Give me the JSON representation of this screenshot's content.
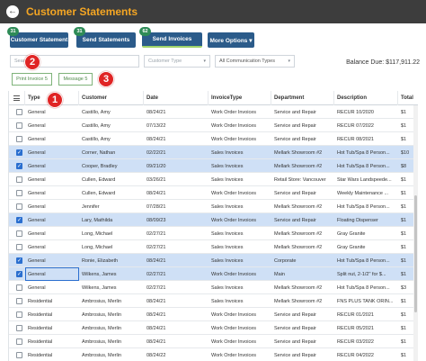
{
  "app": {
    "title": "Customer Statements",
    "back_icon": "arrow-left-circle-icon"
  },
  "toolbar": {
    "customer_statement": {
      "label": "Customer Statement",
      "badge": "31"
    },
    "send_statements": {
      "label": "Send Statements",
      "badge": "31"
    },
    "send_invoices": {
      "label": "Send Invoices",
      "badge": "62"
    },
    "more_options": {
      "label": "More Options ▾"
    }
  },
  "filters": {
    "search_placeholder": "Search",
    "customer_type_placeholder": "Customer Type",
    "communication_types": "All Communication Types"
  },
  "balance_due": "Balance Due: $117,911.22",
  "actions": {
    "print_invoice": "Print Invoice 5",
    "message": "Message 5"
  },
  "annotations": [
    "1",
    "2",
    "3"
  ],
  "table": {
    "columns": [
      "Type",
      "Customer",
      "Date",
      "InvoiceType",
      "Department",
      "Description",
      "Total"
    ],
    "rows": [
      {
        "selected": false,
        "type": "General",
        "customer": "Castillo, Amy",
        "date": "08/24/21",
        "invoice_type": "Work Order Invoices",
        "department": "Service and Repair",
        "description": "RECUR 10/2020",
        "total": "$1"
      },
      {
        "selected": false,
        "type": "General",
        "customer": "Castillo, Amy",
        "date": "07/13/22",
        "invoice_type": "Work Order Invoices",
        "department": "Service and Repair",
        "description": "RECUR 07/2022",
        "total": "$1"
      },
      {
        "selected": false,
        "type": "General",
        "customer": "Castillo, Amy",
        "date": "08/24/21",
        "invoice_type": "Work Order Invoices",
        "department": "Service and Repair",
        "description": "RECUR 08/2021",
        "total": "$1"
      },
      {
        "selected": true,
        "type": "General",
        "customer": "Corner, Nathan",
        "date": "02/22/21",
        "invoice_type": "Sales Invoices",
        "department": "Mellark Showroom #2",
        "description": "Hot Tub/Spa 8 Person...",
        "total": "$10"
      },
      {
        "selected": true,
        "type": "General",
        "customer": "Cooper, Bradley",
        "date": "09/21/20",
        "invoice_type": "Sales Invoices",
        "department": "Mellark Showroom #2",
        "description": "Hot Tub/Spa 8 Person...",
        "total": "$8"
      },
      {
        "selected": false,
        "type": "General",
        "customer": "Cullen, Edward",
        "date": "03/26/21",
        "invoice_type": "Sales Invoices",
        "department": "Retail Store: Vancouver",
        "description": "Star Wars Landspeede...",
        "total": "$1"
      },
      {
        "selected": false,
        "type": "General",
        "customer": "Cullen, Edward",
        "date": "08/24/21",
        "invoice_type": "Work Order Invoices",
        "department": "Service and Repair",
        "description": "Weekly Maintenance ...",
        "total": "$1"
      },
      {
        "selected": false,
        "type": "General",
        "customer": "Jennifer",
        "date": "07/28/21",
        "invoice_type": "Sales Invoices",
        "department": "Mellark Showroom #2",
        "description": "Hot Tub/Spa 8 Person...",
        "total": "$1"
      },
      {
        "selected": true,
        "type": "General",
        "customer": "Lary, Mathilda",
        "date": "08/09/23",
        "invoice_type": "Work Order Invoices",
        "department": "Service and Repair",
        "description": "Floating Dispenser",
        "total": "$1"
      },
      {
        "selected": false,
        "type": "General",
        "customer": "Long, Michael",
        "date": "02/27/21",
        "invoice_type": "Sales Invoices",
        "department": "Mellark Showroom #2",
        "description": "Gray Granite",
        "total": "$1"
      },
      {
        "selected": false,
        "type": "General",
        "customer": "Long, Michael",
        "date": "02/27/21",
        "invoice_type": "Sales Invoices",
        "department": "Mellark Showroom #2",
        "description": "Gray Granite",
        "total": "$1"
      },
      {
        "selected": true,
        "type": "General",
        "customer": "Ronie, Elizabeth",
        "date": "08/24/21",
        "invoice_type": "Sales Invoices",
        "department": "Corporate",
        "description": "Hot Tub/Spa 8 Person...",
        "total": "$1"
      },
      {
        "selected": true,
        "type": "General",
        "customer": "Wilkens, James",
        "date": "02/27/21",
        "invoice_type": "Work Order Invoices",
        "department": "Main",
        "description": "Split nut, 2-1/2\" for $...",
        "total": "$1"
      },
      {
        "selected": false,
        "type": "General",
        "customer": "Wilkens, James",
        "date": "02/27/21",
        "invoice_type": "Sales Invoices",
        "department": "Mellark Showroom #2",
        "description": "Hot Tub/Spa 8 Person...",
        "total": "$3"
      },
      {
        "selected": false,
        "type": "Residential",
        "customer": "Ambrosius, Merlin",
        "date": "08/24/21",
        "invoice_type": "Sales Invoices",
        "department": "Mellark Showroom #2",
        "description": "FNS PLUS TANK ORIN...",
        "total": "$1"
      },
      {
        "selected": false,
        "type": "Residential",
        "customer": "Ambrosius, Merlin",
        "date": "08/24/21",
        "invoice_type": "Work Order Invoices",
        "department": "Service and Repair",
        "description": "RECUR 01/2021",
        "total": "$1"
      },
      {
        "selected": false,
        "type": "Residential",
        "customer": "Ambrosius, Merlin",
        "date": "08/24/21",
        "invoice_type": "Work Order Invoices",
        "department": "Service and Repair",
        "description": "RECUR 05/2021",
        "total": "$1"
      },
      {
        "selected": false,
        "type": "Residential",
        "customer": "Ambrosius, Merlin",
        "date": "08/24/21",
        "invoice_type": "Work Order Invoices",
        "department": "Service and Repair",
        "description": "RECUR 03/2022",
        "total": "$1"
      },
      {
        "selected": false,
        "type": "Residential",
        "customer": "Ambrosius, Merlin",
        "date": "08/24/22",
        "invoice_type": "Work Order Invoices",
        "department": "Service and Repair",
        "description": "RECUR 04/2022",
        "total": "$1"
      }
    ]
  },
  "colors": {
    "title_bar": "#3d3d3d",
    "title_text": "#f5a623",
    "button": "#2b5b8a",
    "badge": "#2e8b57",
    "selected_row": "#cfe0f6",
    "callout": "#e02424"
  }
}
